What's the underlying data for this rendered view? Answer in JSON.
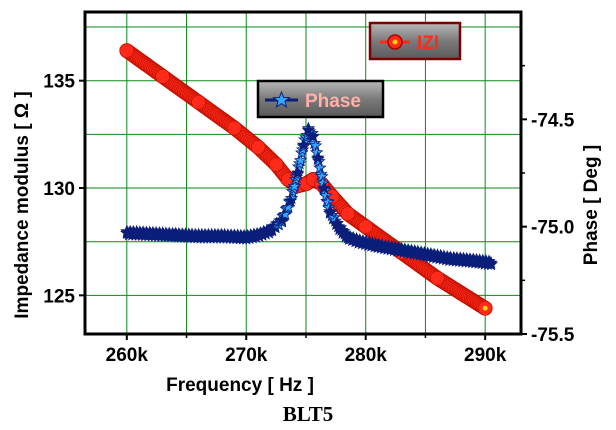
{
  "caption": "BLT5",
  "chart_data": {
    "type": "line",
    "xlabel": "Frequency [ Hz ]",
    "ylabel_left": "Impedance modulus [ Ω ]",
    "ylabel_right": "Phase [ Deg ]",
    "xlim": [
      256500,
      293000
    ],
    "ylim_left": [
      123.2,
      138.2
    ],
    "ylim_right": [
      -75.5,
      -74.0
    ],
    "x_ticks": [
      260000,
      270000,
      280000,
      290000
    ],
    "x_tick_labels": [
      "260k",
      "270k",
      "280k",
      "290k"
    ],
    "y_left_ticks": [
      125,
      130,
      135
    ],
    "y_left_tick_labels": [
      "125",
      "130",
      "135"
    ],
    "y_right_ticks": [
      -75.5,
      -75.0,
      -74.5
    ],
    "y_right_tick_labels": [
      "-75.5",
      "-75.0",
      "-74.5"
    ],
    "grid": true,
    "series": [
      {
        "name": "IZI",
        "axis": "left",
        "color": "#ff2a1a",
        "marker": "circle",
        "x": [
          260000,
          263000,
          266000,
          269000,
          271000,
          272500,
          273500,
          274300,
          275000,
          275600,
          276300,
          277200,
          278500,
          280000,
          283000,
          286000,
          290000
        ],
        "values": [
          136.4,
          135.2,
          134.0,
          132.8,
          131.9,
          131.1,
          130.4,
          130.1,
          130.2,
          130.4,
          130.2,
          129.6,
          128.8,
          128.2,
          127.0,
          125.8,
          124.4
        ]
      },
      {
        "name": "Phase",
        "axis": "right",
        "color": "#0a1e7a",
        "marker": "star",
        "x": [
          260000,
          262000,
          264000,
          266000,
          268000,
          270000,
          271000,
          272000,
          273000,
          273700,
          274300,
          274800,
          275200,
          275600,
          276000,
          276500,
          277000,
          277700,
          278500,
          279500,
          281000,
          283000,
          285000,
          287000,
          289000,
          290500
        ],
        "values": [
          -75.03,
          -75.035,
          -75.04,
          -75.045,
          -75.045,
          -75.05,
          -75.04,
          -75.02,
          -74.97,
          -74.88,
          -74.75,
          -74.62,
          -74.55,
          -74.58,
          -74.68,
          -74.82,
          -74.93,
          -75.0,
          -75.05,
          -75.07,
          -75.09,
          -75.11,
          -75.13,
          -75.15,
          -75.16,
          -75.17
        ]
      }
    ]
  }
}
